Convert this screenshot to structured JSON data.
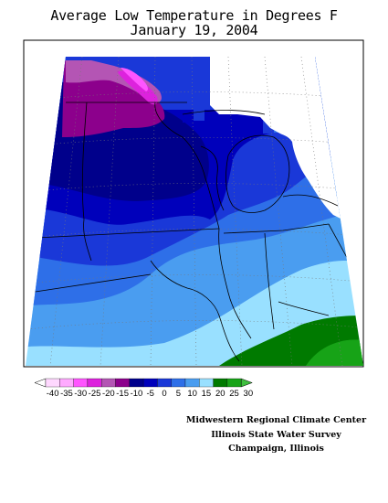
{
  "title": {
    "line1": "Average Low Temperature in Degrees F",
    "line2": "January 19, 2004"
  },
  "legend": {
    "tick_labels": [
      "-40",
      "-35",
      "-30",
      "-25",
      "-20",
      "-15",
      "-10",
      "-5",
      "0",
      "5",
      "10",
      "15",
      "20",
      "25",
      "30"
    ],
    "bins": [
      {
        "color": "#ffffff"
      },
      {
        "color": "#ffd8ff"
      },
      {
        "color": "#ffaaff"
      },
      {
        "color": "#ff55ff"
      },
      {
        "color": "#dd22dd"
      },
      {
        "color": "#b455b4"
      },
      {
        "color": "#8c008c"
      },
      {
        "color": "#00008b"
      },
      {
        "color": "#0000bb"
      },
      {
        "color": "#1a38d8"
      },
      {
        "color": "#2e6fe8"
      },
      {
        "color": "#4a9df0"
      },
      {
        "color": "#99e0ff"
      },
      {
        "color": "#007a00"
      },
      {
        "color": "#17a317"
      },
      {
        "color": "#3fbf3f"
      }
    ]
  },
  "credits": {
    "line1": "Midwestern Regional Climate Center",
    "line2": "Illinois State Water Survey",
    "line3": "Champaign, Illinois"
  }
}
